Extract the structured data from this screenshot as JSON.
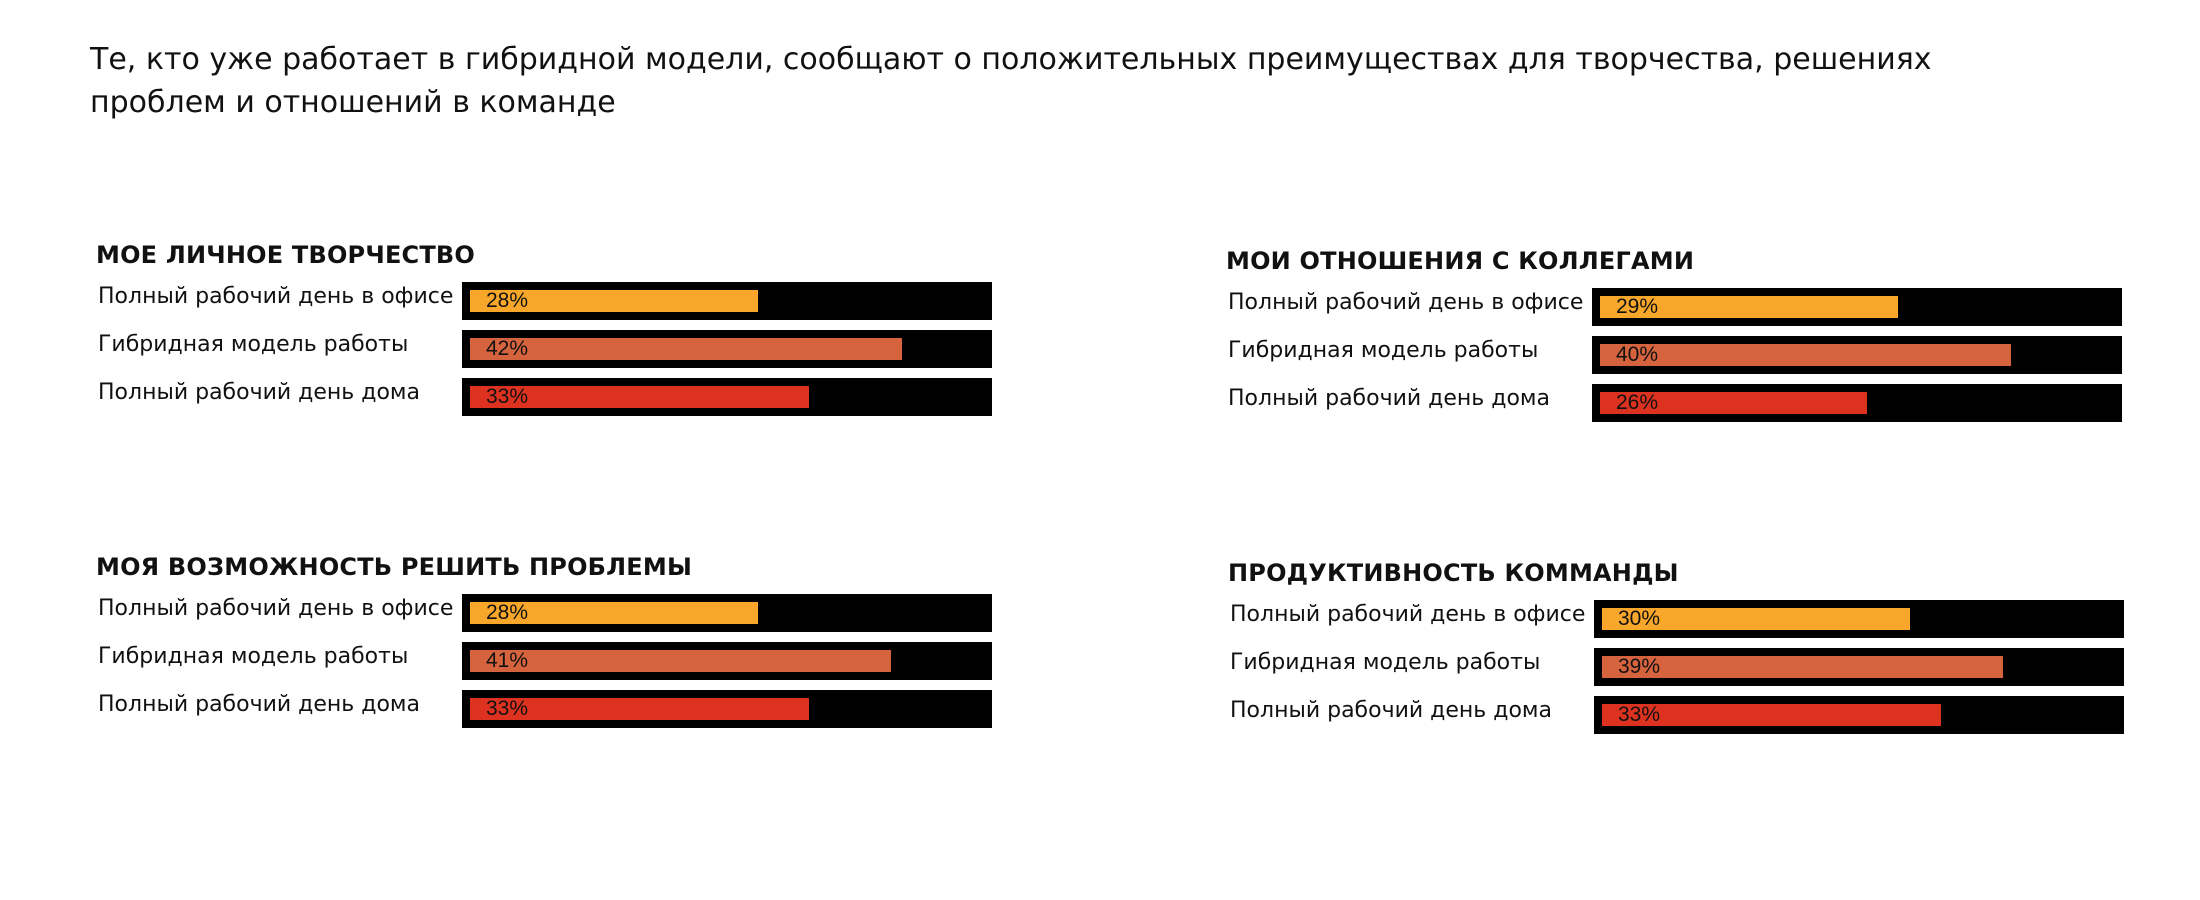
{
  "headline": "Те, кто уже работает в гибридной модели, сообщают о положительных преимуществах для творчества, решениях проблем и отношений в команде",
  "colors": {
    "office": "#f9a72b",
    "hybrid": "#d5633d",
    "home": "#dc321f",
    "track": "#000000"
  },
  "chart_data": [
    {
      "type": "bar",
      "title": "МОЕ ЛИЧНОЕ ТВОРЧЕСТВО",
      "categories": [
        "Полный рабочий день в офисе",
        "Гибридная модель работы",
        "Полный рабочий день дома"
      ],
      "values": [
        28,
        42,
        33
      ],
      "labels": [
        "28%",
        "42%",
        "33%"
      ],
      "xlim": [
        0,
        50
      ]
    },
    {
      "type": "bar",
      "title": "МОИ ОТНОШЕНИЯ С КОЛЛЕГАМИ",
      "categories": [
        "Полный рабочий день в офисе",
        "Гибридная модель работы",
        "Полный рабочий день дома"
      ],
      "values": [
        29,
        40,
        26
      ],
      "labels": [
        "29%",
        "40%",
        "26%"
      ],
      "xlim": [
        0,
        50
      ]
    },
    {
      "type": "bar",
      "title": "МОЯ ВОЗМОЖНОСТЬ РЕШИТЬ ПРОБЛЕМЫ",
      "categories": [
        "Полный рабочий день в офисе",
        "Гибридная модель работы",
        "Полный рабочий день дома"
      ],
      "values": [
        28,
        41,
        33
      ],
      "labels": [
        "28%",
        "41%",
        "33%"
      ],
      "xlim": [
        0,
        50
      ]
    },
    {
      "type": "bar",
      "title": "ПРОДУКТИВНОСТЬ КОММАНДЫ",
      "categories": [
        "Полный рабочий день в офисе",
        "Гибридная модель работы",
        "Полный рабочий день дома"
      ],
      "values": [
        30,
        39,
        33
      ],
      "labels": [
        "30%",
        "39%",
        "33%"
      ],
      "xlim": [
        0,
        50
      ]
    }
  ]
}
